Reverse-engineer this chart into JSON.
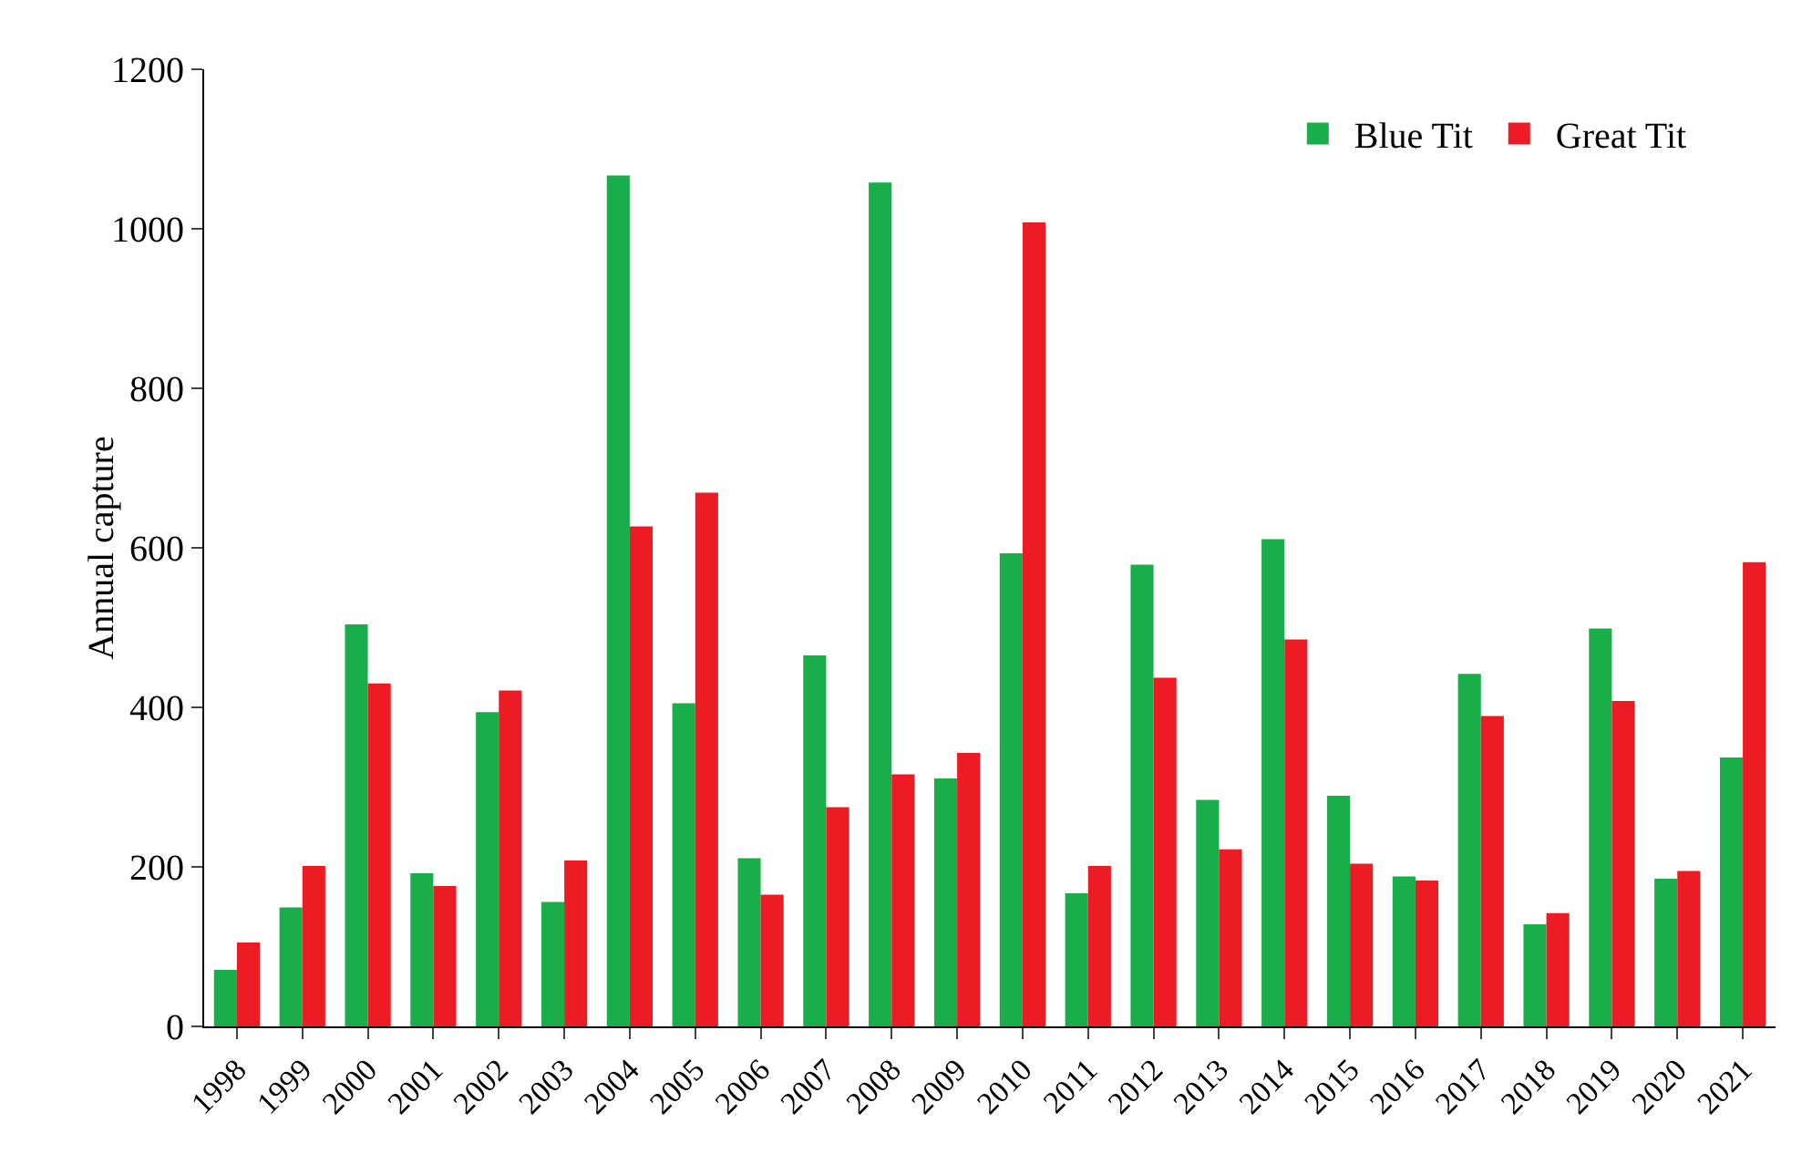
{
  "chart_data": {
    "type": "bar",
    "ylabel": "Annual capture",
    "categories": [
      "1998",
      "1999",
      "2000",
      "2001",
      "2002",
      "2003",
      "2004",
      "2005",
      "2006",
      "2007",
      "2008",
      "2009",
      "2010",
      "2011",
      "2012",
      "2013",
      "2014",
      "2015",
      "2016",
      "2017",
      "2018",
      "2019",
      "2020",
      "2021"
    ],
    "series": [
      {
        "name": "Blue Tit",
        "color": "#1aae4b",
        "values": [
          71,
          149,
          504,
          192,
          394,
          156,
          1067,
          405,
          211,
          465,
          1058,
          311,
          593,
          167,
          579,
          284,
          611,
          289,
          188,
          442,
          128,
          499,
          185,
          337
        ]
      },
      {
        "name": "Great Tit",
        "color": "#ed1c24",
        "values": [
          105,
          201,
          430,
          176,
          421,
          208,
          627,
          669,
          165,
          275,
          316,
          343,
          1008,
          201,
          437,
          222,
          485,
          204,
          183,
          389,
          142,
          408,
          195,
          582
        ]
      }
    ],
    "ylim": [
      0,
      1200
    ],
    "yticks": [
      0,
      200,
      400,
      600,
      800,
      1000,
      1200
    ],
    "grid": false,
    "legend": "top right"
  }
}
